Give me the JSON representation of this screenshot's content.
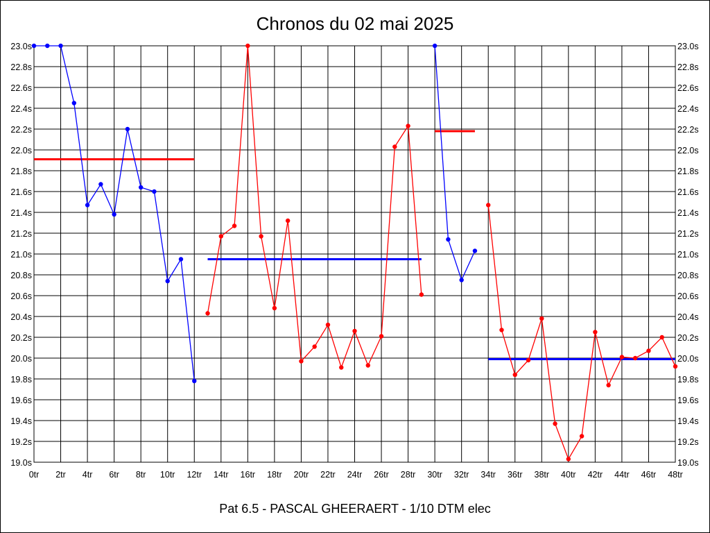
{
  "chart_data": {
    "type": "line",
    "title": "Chronos du 02 mai 2025",
    "subtitle": "Pat 6.5 - PASCAL GHEERAERT - 1/10 DTM elec",
    "xlabel": "",
    "ylabel": "",
    "xlim": [
      0,
      48
    ],
    "ylim": [
      19.0,
      23.0
    ],
    "x_ticks": [
      "0tr",
      "2tr",
      "4tr",
      "6tr",
      "8tr",
      "10tr",
      "12tr",
      "14tr",
      "16tr",
      "18tr",
      "20tr",
      "22tr",
      "24tr",
      "26tr",
      "28tr",
      "30tr",
      "32tr",
      "34tr",
      "36tr",
      "38tr",
      "40tr",
      "42tr",
      "44tr",
      "46tr",
      "48tr"
    ],
    "y_ticks": [
      "19.0s",
      "19.2s",
      "19.4s",
      "19.6s",
      "19.8s",
      "20.0s",
      "20.2s",
      "20.4s",
      "20.6s",
      "20.8s",
      "21.0s",
      "21.2s",
      "21.4s",
      "21.6s",
      "21.8s",
      "22.0s",
      "22.2s",
      "22.4s",
      "22.6s",
      "22.8s",
      "23.0s"
    ],
    "y_tick_values": [
      19.0,
      19.2,
      19.4,
      19.6,
      19.8,
      20.0,
      20.2,
      20.4,
      20.6,
      20.8,
      21.0,
      21.2,
      21.4,
      21.6,
      21.8,
      22.0,
      22.2,
      22.4,
      22.6,
      22.8,
      23.0
    ],
    "grid": true,
    "series": [
      {
        "color": "#0000ff",
        "x": [
          0,
          1,
          2,
          3,
          4,
          5,
          6,
          7,
          8,
          9,
          10,
          11,
          12
        ],
        "values": [
          23.0,
          23.0,
          23.0,
          22.45,
          21.47,
          21.67,
          21.38,
          22.2,
          21.64,
          21.6,
          20.74,
          20.95,
          19.78
        ]
      },
      {
        "color": "#ff0000",
        "x": [
          13,
          14,
          15,
          16,
          17,
          18,
          19,
          20,
          21,
          22,
          23,
          24,
          25,
          26,
          27,
          28,
          29
        ],
        "values": [
          20.43,
          21.17,
          21.27,
          23.0,
          21.17,
          20.48,
          21.32,
          19.97,
          20.11,
          20.32,
          19.91,
          20.26,
          19.93,
          20.21,
          22.03,
          22.23,
          20.61
        ]
      },
      {
        "color": "#0000ff",
        "x": [
          30,
          31,
          32,
          33
        ],
        "values": [
          23.0,
          21.14,
          20.75,
          21.03
        ]
      },
      {
        "color": "#ff0000",
        "x": [
          34,
          35,
          36,
          37,
          38,
          39,
          40,
          41,
          42,
          43,
          44,
          45,
          46,
          47,
          48
        ],
        "values": [
          21.47,
          20.27,
          19.84,
          19.98,
          20.38,
          19.37,
          19.03,
          19.25,
          20.25,
          19.74,
          20.01,
          20.0,
          20.07,
          20.2,
          19.92
        ]
      }
    ],
    "averages": [
      {
        "color": "#ff0000",
        "x": [
          0,
          12
        ],
        "value": 21.91
      },
      {
        "color": "#0000ff",
        "x": [
          13,
          29
        ],
        "value": 20.95
      },
      {
        "color": "#ff0000",
        "x": [
          30,
          33
        ],
        "value": 22.18
      },
      {
        "color": "#0000ff",
        "x": [
          34,
          48
        ],
        "value": 19.99
      }
    ]
  }
}
